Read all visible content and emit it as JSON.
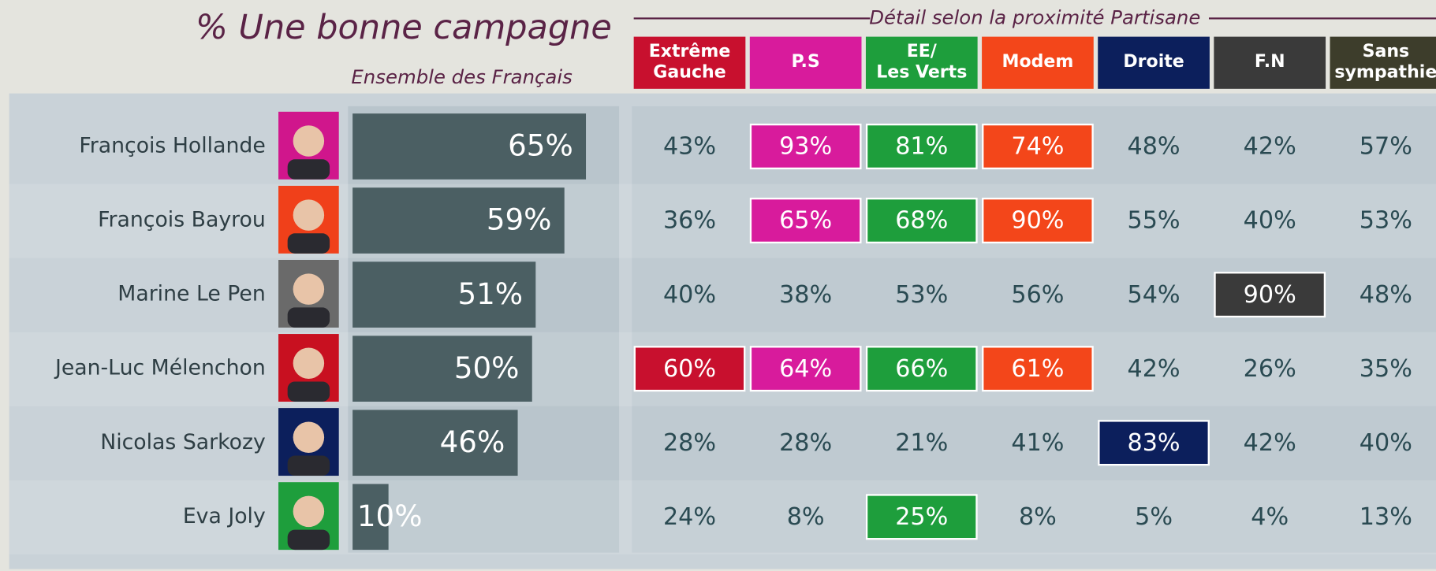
{
  "chart_data": {
    "type": "bar",
    "title": "% Une bonne campagne",
    "subtitle": "Ensemble des Français",
    "categories": [
      "François Hollande",
      "François Bayrou",
      "Marine Le Pen",
      "Jean-Luc Mélenchon",
      "Nicolas Sarkozy",
      "Eva Joly"
    ],
    "values": [
      65,
      59,
      51,
      50,
      46,
      10
    ],
    "value_labels": [
      "65%",
      "59%",
      "51%",
      "50%",
      "46%",
      "10%"
    ],
    "color": "#4b5f63"
  },
  "table": {
    "title": "Détail selon la proximité Partisane",
    "columns": [
      {
        "header": [
          "Extrême",
          "Gauche"
        ],
        "color": "#c8102e",
        "values": [
          "43%",
          "36%",
          "40%",
          "60%",
          "28%",
          "24%"
        ],
        "highlighted": [
          false,
          false,
          false,
          true,
          false,
          false
        ]
      },
      {
        "header": [
          "P.S"
        ],
        "color": "#d81b9c",
        "values": [
          "93%",
          "65%",
          "38%",
          "64%",
          "28%",
          "8%"
        ],
        "highlighted": [
          true,
          true,
          false,
          true,
          false,
          false
        ]
      },
      {
        "header": [
          "EE/",
          "Les Verts"
        ],
        "color": "#1e9e3c",
        "values": [
          "81%",
          "68%",
          "53%",
          "66%",
          "21%",
          "25%"
        ],
        "highlighted": [
          true,
          true,
          false,
          true,
          false,
          true
        ]
      },
      {
        "header": [
          "Modem"
        ],
        "color": "#f3461a",
        "values": [
          "74%",
          "90%",
          "56%",
          "61%",
          "41%",
          "8%"
        ],
        "highlighted": [
          true,
          true,
          false,
          true,
          false,
          false
        ]
      },
      {
        "header": [
          "Droite"
        ],
        "color": "#0c1f5c",
        "values": [
          "48%",
          "55%",
          "54%",
          "42%",
          "83%",
          "5%"
        ],
        "highlighted": [
          false,
          false,
          false,
          false,
          true,
          false
        ]
      },
      {
        "header": [
          "F.N"
        ],
        "color": "#3a3a3a",
        "values": [
          "42%",
          "40%",
          "90%",
          "26%",
          "42%",
          "4%"
        ],
        "highlighted": [
          false,
          false,
          true,
          false,
          false,
          false
        ]
      },
      {
        "header": [
          "Sans",
          "sympathie"
        ],
        "color": "#3d3d2b",
        "values": [
          "57%",
          "53%",
          "48%",
          "35%",
          "40%",
          "13%"
        ],
        "highlighted": [
          false,
          false,
          false,
          false,
          false,
          false
        ]
      }
    ]
  }
}
